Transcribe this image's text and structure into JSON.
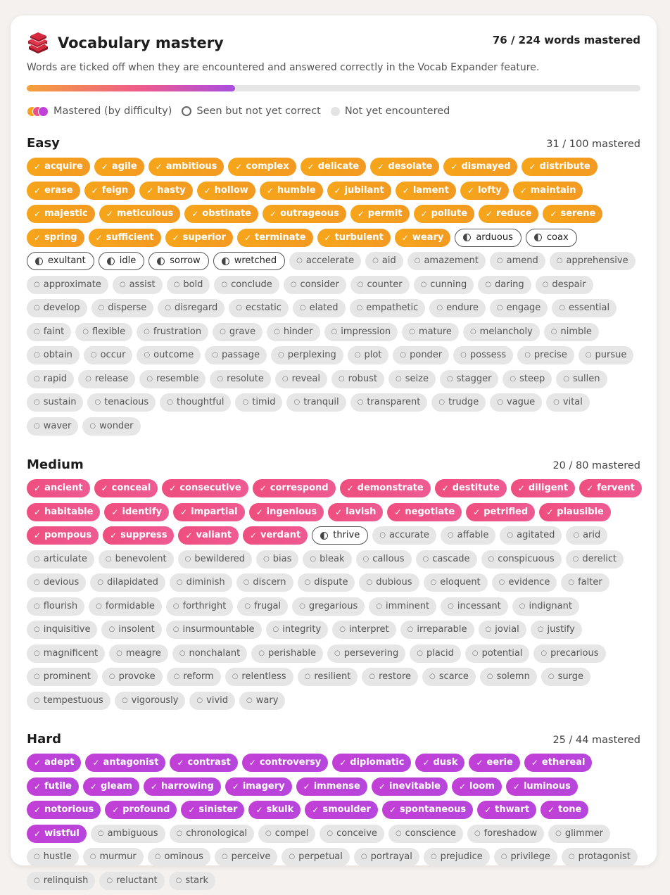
{
  "header": {
    "title": "Vocabulary mastery",
    "total": "76 / 224 words mastered",
    "icon": "books-icon"
  },
  "description": "Words are ticked off when they are encountered and answered correctly in the Vocab Expander feature.",
  "progress": {
    "fraction": 0.339
  },
  "legend": {
    "mastered": "Mastered (by difficulty)",
    "seen": "Seen but not yet correct",
    "not_seen": "Not yet encountered"
  },
  "colors": {
    "easy": "#f7a11c",
    "medium": "#ee4f86",
    "hard": "#c040d8"
  },
  "sections": [
    {
      "key": "easy",
      "title": "Easy",
      "count": "31 / 100 mastered",
      "mastered": [
        "acquire",
        "agile",
        "ambitious",
        "complex",
        "delicate",
        "desolate",
        "dismayed",
        "distribute",
        "erase",
        "feign",
        "hasty",
        "hollow",
        "humble",
        "jubilant",
        "lament",
        "lofty",
        "maintain",
        "majestic",
        "meticulous",
        "obstinate",
        "outrageous",
        "permit",
        "pollute",
        "reduce",
        "serene",
        "spring",
        "sufficient",
        "superior",
        "terminate",
        "turbulent",
        "weary"
      ],
      "seen": [
        "arduous",
        "coax",
        "exultant",
        "idle",
        "sorrow",
        "wretched"
      ],
      "unseen": [
        "accelerate",
        "aid",
        "amazement",
        "amend",
        "apprehensive",
        "approximate",
        "assist",
        "bold",
        "conclude",
        "consider",
        "counter",
        "cunning",
        "daring",
        "despair",
        "develop",
        "disperse",
        "disregard",
        "ecstatic",
        "elated",
        "empathetic",
        "endure",
        "engage",
        "essential",
        "faint",
        "flexible",
        "frustration",
        "grave",
        "hinder",
        "impression",
        "mature",
        "melancholy",
        "nimble",
        "obtain",
        "occur",
        "outcome",
        "passage",
        "perplexing",
        "plot",
        "ponder",
        "possess",
        "precise",
        "pursue",
        "rapid",
        "release",
        "resemble",
        "resolute",
        "reveal",
        "robust",
        "seize",
        "stagger",
        "steep",
        "sullen",
        "sustain",
        "tenacious",
        "thoughtful",
        "timid",
        "tranquil",
        "transparent",
        "trudge",
        "vague",
        "vital",
        "waver",
        "wonder"
      ]
    },
    {
      "key": "medium",
      "title": "Medium",
      "count": "20 / 80 mastered",
      "mastered": [
        "ancient",
        "conceal",
        "consecutive",
        "correspond",
        "demonstrate",
        "destitute",
        "diligent",
        "fervent",
        "habitable",
        "identify",
        "impartial",
        "ingenious",
        "lavish",
        "negotiate",
        "petrified",
        "plausible",
        "pompous",
        "suppress",
        "valiant",
        "verdant"
      ],
      "seen": [
        "thrive"
      ],
      "unseen": [
        "accurate",
        "affable",
        "agitated",
        "arid",
        "articulate",
        "benevolent",
        "bewildered",
        "bias",
        "bleak",
        "callous",
        "cascade",
        "conspicuous",
        "derelict",
        "devious",
        "dilapidated",
        "diminish",
        "discern",
        "dispute",
        "dubious",
        "eloquent",
        "evidence",
        "falter",
        "flourish",
        "formidable",
        "forthright",
        "frugal",
        "gregarious",
        "imminent",
        "incessant",
        "indignant",
        "inquisitive",
        "insolent",
        "insurmountable",
        "integrity",
        "interpret",
        "irreparable",
        "jovial",
        "justify",
        "magnificent",
        "meagre",
        "nonchalant",
        "perishable",
        "persevering",
        "placid",
        "potential",
        "precarious",
        "prominent",
        "provoke",
        "reform",
        "relentless",
        "resilient",
        "restore",
        "scarce",
        "solemn",
        "surge",
        "tempestuous",
        "vigorously",
        "vivid",
        "wary"
      ]
    },
    {
      "key": "hard",
      "title": "Hard",
      "count": "25 / 44 mastered",
      "mastered": [
        "adept",
        "antagonist",
        "contrast",
        "controversy",
        "diplomatic",
        "dusk",
        "eerie",
        "ethereal",
        "futile",
        "gleam",
        "harrowing",
        "imagery",
        "immense",
        "inevitable",
        "loom",
        "luminous",
        "notorious",
        "profound",
        "sinister",
        "skulk",
        "smoulder",
        "spontaneous",
        "thwart",
        "tone",
        "wistful"
      ],
      "seen": [],
      "unseen": [
        "ambiguous",
        "chronological",
        "compel",
        "conceive",
        "conscience",
        "foreshadow",
        "glimmer",
        "hustle",
        "murmur",
        "ominous",
        "perceive",
        "perpetual",
        "portrayal",
        "prejudice",
        "privilege",
        "protagonist",
        "relinquish",
        "reluctant",
        "stark"
      ]
    }
  ]
}
